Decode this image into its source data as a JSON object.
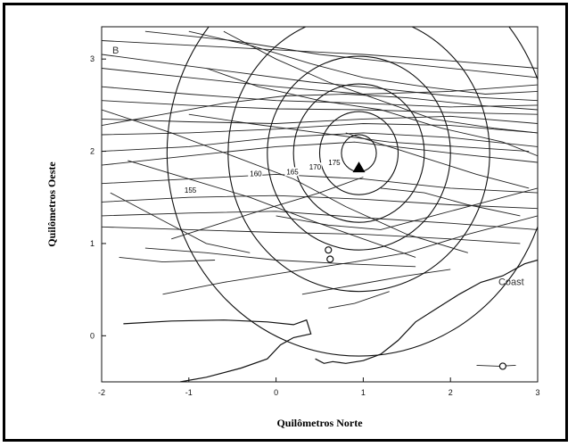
{
  "chart_data": {
    "type": "line",
    "panel_label": "B",
    "xlabel": "Quilômetros Norte",
    "ylabel": "Quilômetros Oeste",
    "xlim": [
      -2,
      3
    ],
    "ylim": [
      -0.5,
      3.35
    ],
    "x_ticks": [
      "-2",
      "-1",
      "0",
      "1",
      "2",
      "3"
    ],
    "y_ticks": [
      "0",
      "1",
      "2",
      "3"
    ],
    "grid": false,
    "source_marker": {
      "x": 0.95,
      "y": 1.82
    },
    "contour_center": {
      "x": 0.95,
      "y": 1.98
    },
    "contours": [
      {
        "label": "155",
        "radius_km": 2.2,
        "label_pos": {
          "x": -1.05,
          "y": 1.55
        }
      },
      {
        "label": "160",
        "radius_km": 1.5,
        "label_pos": {
          "x": -0.3,
          "y": 1.73
        }
      },
      {
        "label": "165",
        "radius_km": 1.05,
        "label_pos": {
          "x": 0.12,
          "y": 1.75
        }
      },
      {
        "label": "170",
        "radius_km": 0.75,
        "label_pos": {
          "x": 0.38,
          "y": 1.8
        }
      },
      {
        "label": "175",
        "radius_km": 0.45,
        "label_pos": {
          "x": 0.6,
          "y": 1.85
        }
      },
      {
        "label": "",
        "radius_km": 0.2,
        "label_pos": null
      }
    ],
    "coast_label": {
      "text": "Coast",
      "x": 2.55,
      "y": 0.55
    },
    "coastline": [
      [
        [
          -1.75,
          0.13
        ],
        [
          -1.2,
          0.16
        ],
        [
          -0.6,
          0.17
        ],
        [
          -0.1,
          0.15
        ],
        [
          0.2,
          0.12
        ],
        [
          0.35,
          0.17
        ],
        [
          0.4,
          0.02
        ],
        [
          0.2,
          -0.02
        ],
        [
          0.05,
          -0.1
        ],
        [
          -0.1,
          -0.25
        ],
        [
          -0.4,
          -0.35
        ],
        [
          -0.8,
          -0.45
        ],
        [
          -1.1,
          -0.5
        ]
      ],
      [
        [
          0.45,
          -0.25
        ],
        [
          0.55,
          -0.3
        ],
        [
          0.65,
          -0.28
        ],
        [
          0.8,
          -0.3
        ],
        [
          1.0,
          -0.27
        ],
        [
          1.2,
          -0.2
        ],
        [
          1.4,
          -0.05
        ],
        [
          1.6,
          0.15
        ],
        [
          1.85,
          0.3
        ],
        [
          2.1,
          0.45
        ],
        [
          2.35,
          0.58
        ],
        [
          2.6,
          0.65
        ],
        [
          2.85,
          0.78
        ],
        [
          3.0,
          0.82
        ]
      ]
    ],
    "tracks": [
      [
        [
          -2.0,
          3.05
        ],
        [
          -1.2,
          2.95
        ],
        [
          -0.4,
          2.85
        ],
        [
          0.4,
          2.75
        ],
        [
          1.2,
          2.68
        ],
        [
          2.0,
          2.6
        ],
        [
          3.0,
          2.55
        ]
      ],
      [
        [
          -2.0,
          2.9
        ],
        [
          -1.0,
          2.8
        ],
        [
          0.0,
          2.7
        ],
        [
          1.0,
          2.62
        ],
        [
          2.0,
          2.65
        ],
        [
          3.0,
          2.72
        ]
      ],
      [
        [
          -2.0,
          2.7
        ],
        [
          -1.0,
          2.62
        ],
        [
          0.0,
          2.55
        ],
        [
          1.0,
          2.52
        ],
        [
          2.0,
          2.48
        ],
        [
          3.0,
          2.5
        ]
      ],
      [
        [
          -2.0,
          2.55
        ],
        [
          -1.0,
          2.5
        ],
        [
          0.0,
          2.46
        ],
        [
          1.0,
          2.45
        ],
        [
          2.0,
          2.42
        ],
        [
          3.0,
          2.4
        ]
      ],
      [
        [
          -2.0,
          2.35
        ],
        [
          -1.0,
          2.32
        ],
        [
          0.0,
          2.3
        ],
        [
          1.0,
          2.35
        ],
        [
          2.0,
          2.38
        ],
        [
          3.0,
          2.3
        ]
      ],
      [
        [
          -2.0,
          2.18
        ],
        [
          -1.0,
          2.2
        ],
        [
          0.0,
          2.24
        ],
        [
          1.0,
          2.3
        ],
        [
          2.0,
          2.28
        ],
        [
          3.0,
          2.2
        ]
      ],
      [
        [
          -2.0,
          2.0
        ],
        [
          -1.0,
          2.05
        ],
        [
          0.0,
          2.15
        ],
        [
          1.0,
          2.2
        ],
        [
          2.0,
          2.15
        ],
        [
          3.0,
          2.05
        ]
      ],
      [
        [
          -2.0,
          1.85
        ],
        [
          -1.0,
          1.95
        ],
        [
          0.0,
          2.05
        ],
        [
          0.9,
          2.1
        ],
        [
          2.0,
          1.98
        ],
        [
          3.0,
          1.88
        ]
      ],
      [
        [
          -2.0,
          1.65
        ],
        [
          -1.0,
          1.7
        ],
        [
          0.0,
          1.75
        ],
        [
          1.0,
          1.7
        ],
        [
          2.0,
          1.6
        ],
        [
          3.0,
          1.55
        ]
      ],
      [
        [
          -2.0,
          1.45
        ],
        [
          -1.0,
          1.5
        ],
        [
          0.0,
          1.52
        ],
        [
          1.0,
          1.48
        ],
        [
          2.0,
          1.42
        ],
        [
          3.0,
          1.38
        ]
      ],
      [
        [
          -2.0,
          1.3
        ],
        [
          -1.0,
          1.33
        ],
        [
          0.0,
          1.35
        ],
        [
          1.0,
          1.28
        ],
        [
          2.0,
          1.22
        ],
        [
          3.0,
          1.15
        ]
      ],
      [
        [
          -2.0,
          1.18
        ],
        [
          -1.0,
          1.15
        ],
        [
          0.0,
          1.12
        ],
        [
          1.0,
          1.1
        ],
        [
          2.0,
          1.05
        ],
        [
          2.8,
          1.0
        ]
      ],
      [
        [
          -2.0,
          3.2
        ],
        [
          -1.0,
          3.15
        ],
        [
          0.0,
          3.1
        ],
        [
          1.0,
          3.05
        ],
        [
          2.0,
          2.98
        ],
        [
          3.0,
          2.9
        ]
      ],
      [
        [
          -1.5,
          3.3
        ],
        [
          -0.5,
          3.2
        ],
        [
          0.5,
          3.05
        ],
        [
          1.5,
          2.95
        ],
        [
          2.5,
          2.85
        ],
        [
          3.0,
          2.8
        ]
      ],
      [
        [
          -2.0,
          2.45
        ],
        [
          -1.2,
          2.2
        ],
        [
          -0.5,
          1.95
        ],
        [
          0.2,
          1.7
        ],
        [
          0.8,
          1.4
        ],
        [
          1.5,
          1.1
        ],
        [
          2.2,
          0.9
        ]
      ],
      [
        [
          -1.7,
          1.9
        ],
        [
          -1.0,
          1.7
        ],
        [
          -0.3,
          1.5
        ],
        [
          0.4,
          1.25
        ],
        [
          1.0,
          1.05
        ],
        [
          1.6,
          0.85
        ]
      ],
      [
        [
          -1.5,
          0.95
        ],
        [
          -0.8,
          0.9
        ],
        [
          0.0,
          0.82
        ],
        [
          0.8,
          0.78
        ],
        [
          1.6,
          0.75
        ]
      ],
      [
        [
          -1.8,
          0.85
        ],
        [
          -1.3,
          0.8
        ],
        [
          -0.7,
          0.82
        ]
      ],
      [
        [
          -1.3,
          0.45
        ],
        [
          -0.6,
          0.58
        ],
        [
          0.2,
          0.7
        ],
        [
          0.9,
          0.8
        ],
        [
          1.5,
          0.9
        ],
        [
          2.2,
          1.1
        ],
        [
          3.0,
          1.3
        ]
      ],
      [
        [
          0.3,
          0.45
        ],
        [
          0.9,
          0.55
        ],
        [
          1.5,
          0.65
        ],
        [
          2.0,
          0.72
        ]
      ],
      [
        [
          -0.8,
          2.9
        ],
        [
          -0.2,
          2.7
        ],
        [
          0.5,
          2.55
        ],
        [
          1.2,
          2.45
        ],
        [
          1.9,
          2.25
        ],
        [
          2.6,
          2.1
        ],
        [
          3.0,
          1.95
        ]
      ],
      [
        [
          -0.6,
          3.3
        ],
        [
          0.0,
          3.0
        ],
        [
          0.6,
          2.75
        ],
        [
          1.2,
          2.55
        ],
        [
          1.8,
          2.35
        ],
        [
          2.5,
          2.25
        ],
        [
          3.0,
          2.2
        ]
      ],
      [
        [
          -1.0,
          2.4
        ],
        [
          -0.3,
          2.3
        ],
        [
          0.5,
          2.2
        ],
        [
          1.3,
          2.1
        ],
        [
          2.1,
          2.05
        ],
        [
          2.9,
          2.0
        ]
      ],
      [
        [
          0.8,
          2.2
        ],
        [
          1.3,
          2.05
        ],
        [
          1.8,
          1.9
        ],
        [
          2.3,
          1.75
        ],
        [
          2.9,
          1.6
        ]
      ],
      [
        [
          -1.9,
          1.55
        ],
        [
          -1.3,
          1.25
        ],
        [
          -0.8,
          1.0
        ],
        [
          -0.3,
          0.9
        ]
      ],
      [
        [
          -1.2,
          1.05
        ],
        [
          -0.7,
          1.2
        ],
        [
          -0.1,
          1.38
        ],
        [
          0.5,
          1.55
        ],
        [
          1.0,
          1.72
        ]
      ],
      [
        [
          0.0,
          1.3
        ],
        [
          0.6,
          1.2
        ],
        [
          1.2,
          1.15
        ],
        [
          1.8,
          1.3
        ],
        [
          2.4,
          1.45
        ],
        [
          3.0,
          1.6
        ]
      ],
      [
        [
          -1.0,
          3.3
        ],
        [
          -0.3,
          3.15
        ],
        [
          0.4,
          2.95
        ],
        [
          1.0,
          2.8
        ],
        [
          1.7,
          2.7
        ],
        [
          2.4,
          2.62
        ],
        [
          3.0,
          2.65
        ]
      ],
      [
        [
          -2.0,
          2.28
        ],
        [
          -1.3,
          2.4
        ],
        [
          -0.6,
          2.52
        ],
        [
          0.1,
          2.6
        ],
        [
          0.8,
          2.62
        ],
        [
          1.5,
          2.58
        ],
        [
          2.3,
          2.5
        ],
        [
          3.0,
          2.45
        ]
      ],
      [
        [
          1.2,
          1.6
        ],
        [
          1.7,
          1.55
        ],
        [
          2.2,
          1.42
        ],
        [
          2.8,
          1.3
        ]
      ],
      [
        [
          0.6,
          0.3
        ],
        [
          0.9,
          0.35
        ],
        [
          1.3,
          0.48
        ]
      ],
      [
        [
          2.3,
          -0.32
        ],
        [
          2.55,
          -0.33
        ],
        [
          2.75,
          -0.32
        ]
      ]
    ],
    "annotations": [
      {
        "type": "circle",
        "x": 0.6,
        "y": 0.93
      },
      {
        "type": "circle",
        "x": 0.62,
        "y": 0.83
      },
      {
        "type": "circle",
        "x": 2.6,
        "y": -0.33
      }
    ]
  }
}
